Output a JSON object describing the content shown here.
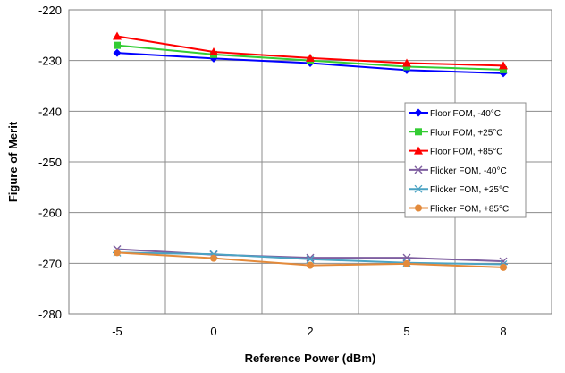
{
  "chart_data": {
    "type": "line",
    "title": "",
    "xlabel": "Reference Power (dBm)",
    "ylabel": "Figure of Merit",
    "categories": [
      "-5",
      "0",
      "2",
      "5",
      "8"
    ],
    "ylim": [
      -280,
      -220
    ],
    "yticks": [
      -220,
      -230,
      -240,
      -250,
      -260,
      -270,
      -280
    ],
    "grid": true,
    "legend_position": "right",
    "series": [
      {
        "name": "Floor FOM, -40°C",
        "color": "#0000ff",
        "marker": "diamond",
        "values": [
          -228.5,
          -229.6,
          -230.5,
          -231.9,
          -232.5
        ]
      },
      {
        "name": "Floor FOM, +25°C",
        "color": "#33cc33",
        "marker": "square",
        "values": [
          -227.0,
          -228.8,
          -230.0,
          -231.2,
          -231.8
        ]
      },
      {
        "name": "Floor FOM, +85°C",
        "color": "#ff0000",
        "marker": "triangle",
        "values": [
          -225.2,
          -228.3,
          -229.5,
          -230.5,
          -231.0
        ]
      },
      {
        "name": "Flicker FOM, -40°C",
        "color": "#7f5fa0",
        "marker": "x",
        "values": [
          -267.2,
          -268.3,
          -268.9,
          -268.9,
          -269.6
        ]
      },
      {
        "name": "Flicker FOM, +25°C",
        "color": "#4ba3c3",
        "marker": "star",
        "values": [
          -267.9,
          -268.2,
          -269.2,
          -269.9,
          -270.2
        ]
      },
      {
        "name": "Flicker FOM, +85°C",
        "color": "#e38a3b",
        "marker": "circle",
        "values": [
          -267.9,
          -269.0,
          -270.4,
          -270.1,
          -270.8
        ]
      }
    ]
  }
}
